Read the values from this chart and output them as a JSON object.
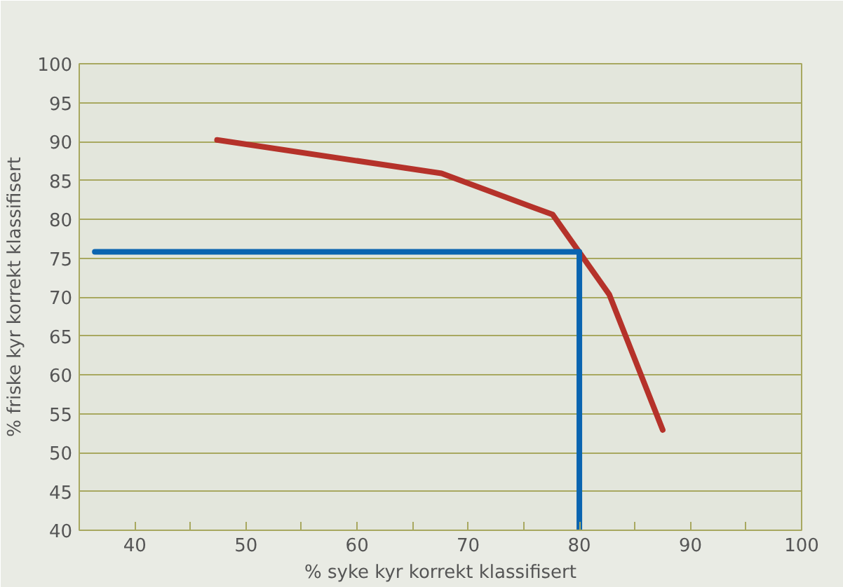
{
  "chart_data": {
    "type": "line",
    "xlabel": "% syke kyr korrekt klassifisert",
    "ylabel": "% friske kyr korrekt klassifisert",
    "xlim": [
      35,
      100
    ],
    "xticks": [
      40,
      {
        "value": 45,
        "label": null
      },
      50,
      {
        "value": 55,
        "label": null
      },
      60,
      {
        "value": 65,
        "label": null
      },
      70,
      {
        "value": 75,
        "label": null
      },
      80,
      {
        "value": 85,
        "label": null
      },
      90,
      {
        "value": 95,
        "label": null
      },
      100
    ],
    "ylim": [
      40,
      100
    ],
    "yticks": [
      40,
      45,
      50,
      55,
      60,
      65,
      70,
      75,
      80,
      85,
      90,
      95,
      100
    ],
    "grid": "y",
    "marker": "none",
    "line_style": "solid",
    "series": [
      {
        "color": "#b5322a",
        "x": [
          47.4,
          67.6,
          77.6,
          82.7,
          87.5
        ],
        "values": [
          90.2,
          85.9,
          80.6,
          70.3,
          52.9
        ]
      },
      {
        "color": "#0a64b0",
        "x": [
          36.4,
          80,
          80
        ],
        "values": [
          75.8,
          75.8,
          40
        ]
      }
    ]
  }
}
